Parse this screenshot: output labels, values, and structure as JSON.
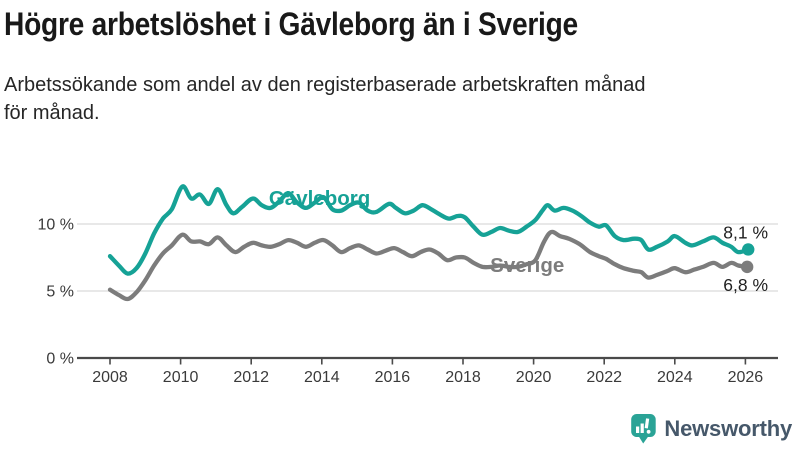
{
  "header": {
    "title": "Högre arbetslöshet i Gävleborg än i Sverige",
    "subtitle_line1": "Arbetssökande som andel av den registerbaserade arbetskraften månad",
    "subtitle_line2": "för månad."
  },
  "colors": {
    "accent_teal": "#16a296",
    "line_gray": "#7c7c7c",
    "grid": "#d9d9d9",
    "axis": "#4a4a4a",
    "tick_text": "#3a3a3a",
    "end_label_text": "#1f1f1f",
    "logo_icon": "#2aa396",
    "logo_text": "#46586a"
  },
  "chart_data": {
    "type": "line",
    "title": "Högre arbetslöshet i Gävleborg än i Sverige",
    "subtitle": "Arbetssökande som andel av den registerbaserade arbetskraften månad för månad.",
    "xlabel": "",
    "ylabel": "",
    "grid": "horizontal",
    "legend_position": "inline-labels",
    "xlim": [
      2007.1,
      2026.95
    ],
    "ylim": [
      0,
      15.5
    ],
    "x_ticks": [
      2008,
      2010,
      2012,
      2014,
      2016,
      2018,
      2020,
      2022,
      2024,
      2026
    ],
    "y_ticks": [
      {
        "value": 10,
        "label": "10 %"
      },
      {
        "value": 5,
        "label": "5 %"
      },
      {
        "value": 0,
        "label": "0 %"
      }
    ],
    "series": [
      {
        "name": "Gävleborg",
        "color": "#16a296",
        "end_label": "8,1 %",
        "end_value": 8.1,
        "end_label_position": "above",
        "name_label_at": {
          "x": 2012.5,
          "y": 11.42
        },
        "points": [
          [
            2008.0,
            7.6
          ],
          [
            2008.25,
            6.9
          ],
          [
            2008.5,
            6.3
          ],
          [
            2008.75,
            6.7
          ],
          [
            2009.0,
            7.8
          ],
          [
            2009.25,
            9.3
          ],
          [
            2009.5,
            10.4
          ],
          [
            2009.75,
            11.1
          ],
          [
            2010.05,
            12.8
          ],
          [
            2010.3,
            11.9
          ],
          [
            2010.55,
            12.2
          ],
          [
            2010.8,
            11.5
          ],
          [
            2011.05,
            12.6
          ],
          [
            2011.3,
            11.4
          ],
          [
            2011.5,
            10.8
          ],
          [
            2011.75,
            11.3
          ],
          [
            2012.05,
            11.9
          ],
          [
            2012.3,
            11.4
          ],
          [
            2012.55,
            11.2
          ],
          [
            2012.8,
            11.7
          ],
          [
            2013.05,
            12.3
          ],
          [
            2013.3,
            11.6
          ],
          [
            2013.55,
            11.2
          ],
          [
            2013.8,
            11.6
          ],
          [
            2014.05,
            12.0
          ],
          [
            2014.3,
            11.1
          ],
          [
            2014.55,
            11.0
          ],
          [
            2014.8,
            11.4
          ],
          [
            2015.05,
            11.6
          ],
          [
            2015.3,
            11.0
          ],
          [
            2015.55,
            10.9
          ],
          [
            2015.9,
            11.5
          ],
          [
            2016.1,
            11.2
          ],
          [
            2016.35,
            10.8
          ],
          [
            2016.6,
            11.0
          ],
          [
            2016.85,
            11.4
          ],
          [
            2017.1,
            11.1
          ],
          [
            2017.35,
            10.7
          ],
          [
            2017.6,
            10.4
          ],
          [
            2017.85,
            10.6
          ],
          [
            2018.05,
            10.5
          ],
          [
            2018.3,
            9.8
          ],
          [
            2018.55,
            9.2
          ],
          [
            2018.8,
            9.4
          ],
          [
            2019.05,
            9.7
          ],
          [
            2019.3,
            9.5
          ],
          [
            2019.55,
            9.4
          ],
          [
            2019.8,
            9.8
          ],
          [
            2020.05,
            10.3
          ],
          [
            2020.25,
            11.0
          ],
          [
            2020.4,
            11.4
          ],
          [
            2020.6,
            11.0
          ],
          [
            2020.85,
            11.2
          ],
          [
            2021.1,
            11.0
          ],
          [
            2021.35,
            10.6
          ],
          [
            2021.6,
            10.1
          ],
          [
            2021.85,
            9.8
          ],
          [
            2022.05,
            9.9
          ],
          [
            2022.3,
            9.1
          ],
          [
            2022.55,
            8.8
          ],
          [
            2022.85,
            8.9
          ],
          [
            2023.05,
            8.8
          ],
          [
            2023.25,
            8.1
          ],
          [
            2023.5,
            8.3
          ],
          [
            2023.8,
            8.7
          ],
          [
            2024.0,
            9.1
          ],
          [
            2024.3,
            8.6
          ],
          [
            2024.5,
            8.4
          ],
          [
            2024.8,
            8.7
          ],
          [
            2025.1,
            9.0
          ],
          [
            2025.35,
            8.6
          ],
          [
            2025.6,
            8.3
          ],
          [
            2025.8,
            7.9
          ],
          [
            2026.08,
            8.1
          ]
        ]
      },
      {
        "name": "Sverige",
        "color": "#7c7c7c",
        "end_label": "6,8 %",
        "end_value": 6.8,
        "end_label_position": "below",
        "name_label_at": {
          "x": 2018.77,
          "y": 6.42
        },
        "points": [
          [
            2008.0,
            5.1
          ],
          [
            2008.25,
            4.7
          ],
          [
            2008.5,
            4.4
          ],
          [
            2008.75,
            4.9
          ],
          [
            2009.0,
            5.8
          ],
          [
            2009.25,
            6.9
          ],
          [
            2009.5,
            7.8
          ],
          [
            2009.75,
            8.4
          ],
          [
            2010.05,
            9.2
          ],
          [
            2010.3,
            8.7
          ],
          [
            2010.55,
            8.7
          ],
          [
            2010.8,
            8.5
          ],
          [
            2011.05,
            9.0
          ],
          [
            2011.3,
            8.4
          ],
          [
            2011.55,
            7.9
          ],
          [
            2011.8,
            8.3
          ],
          [
            2012.05,
            8.6
          ],
          [
            2012.3,
            8.4
          ],
          [
            2012.55,
            8.3
          ],
          [
            2012.8,
            8.5
          ],
          [
            2013.05,
            8.8
          ],
          [
            2013.3,
            8.6
          ],
          [
            2013.55,
            8.3
          ],
          [
            2013.8,
            8.6
          ],
          [
            2014.05,
            8.8
          ],
          [
            2014.3,
            8.4
          ],
          [
            2014.55,
            7.9
          ],
          [
            2014.8,
            8.2
          ],
          [
            2015.05,
            8.4
          ],
          [
            2015.3,
            8.1
          ],
          [
            2015.55,
            7.8
          ],
          [
            2015.8,
            8.0
          ],
          [
            2016.05,
            8.2
          ],
          [
            2016.3,
            7.9
          ],
          [
            2016.55,
            7.6
          ],
          [
            2016.8,
            7.9
          ],
          [
            2017.05,
            8.1
          ],
          [
            2017.3,
            7.8
          ],
          [
            2017.55,
            7.3
          ],
          [
            2017.8,
            7.5
          ],
          [
            2018.05,
            7.5
          ],
          [
            2018.3,
            7.1
          ],
          [
            2018.55,
            6.8
          ],
          [
            2018.8,
            6.8
          ],
          [
            2019.05,
            6.9
          ],
          [
            2019.3,
            6.8
          ],
          [
            2019.55,
            6.8
          ],
          [
            2019.8,
            7.0
          ],
          [
            2020.05,
            7.3
          ],
          [
            2020.3,
            8.7
          ],
          [
            2020.5,
            9.4
          ],
          [
            2020.75,
            9.1
          ],
          [
            2021.0,
            8.9
          ],
          [
            2021.3,
            8.5
          ],
          [
            2021.6,
            7.9
          ],
          [
            2021.85,
            7.6
          ],
          [
            2022.05,
            7.4
          ],
          [
            2022.3,
            7.0
          ],
          [
            2022.55,
            6.7
          ],
          [
            2022.85,
            6.5
          ],
          [
            2023.05,
            6.4
          ],
          [
            2023.25,
            6.0
          ],
          [
            2023.5,
            6.2
          ],
          [
            2023.8,
            6.5
          ],
          [
            2024.0,
            6.7
          ],
          [
            2024.3,
            6.4
          ],
          [
            2024.55,
            6.6
          ],
          [
            2024.8,
            6.8
          ],
          [
            2025.1,
            7.1
          ],
          [
            2025.35,
            6.8
          ],
          [
            2025.6,
            7.1
          ],
          [
            2025.8,
            6.9
          ],
          [
            2026.05,
            6.8
          ]
        ]
      }
    ]
  },
  "branding": {
    "logo_text": "Newsworthy",
    "logo_icon": "bar-chart-speech-bubble-icon"
  }
}
